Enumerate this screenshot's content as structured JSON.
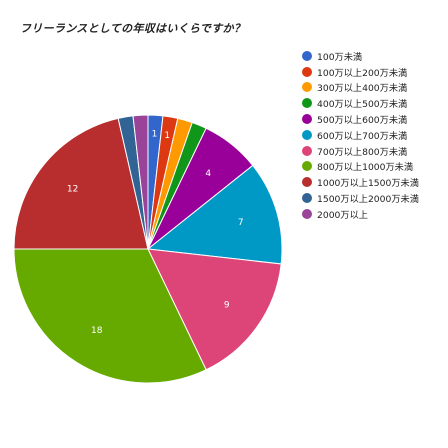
{
  "chart_data": {
    "type": "pie",
    "title": "フリーランスとしての年収はいくらですか？",
    "categories": [
      "100万未満",
      "100万以上200万未満",
      "300万以上400万未満",
      "400万以上500万未満",
      "500万以上600万未満",
      "600万以上700万未満",
      "700万以上800万未満",
      "800万以上1000万未満",
      "1000万以上1500万未満",
      "1500万以上2000万未満",
      "2000万以上"
    ],
    "values": [
      1,
      1,
      1,
      1,
      4,
      7,
      9,
      18,
      12,
      1,
      1
    ],
    "colors": [
      "#3366cc",
      "#dc3912",
      "#ff9900",
      "#109618",
      "#990099",
      "#0099c6",
      "#dd4477",
      "#66aa00",
      "#b82e2e",
      "#316395",
      "#994499"
    ],
    "slice_labels": [
      "1",
      "1",
      "",
      "",
      "4",
      "7",
      "9",
      "18",
      "12",
      "",
      ""
    ],
    "start_angle_deg": 0,
    "direction": "clockwise",
    "legend_position": "right"
  }
}
